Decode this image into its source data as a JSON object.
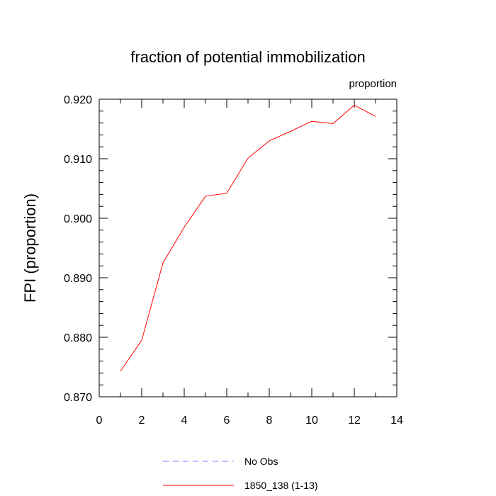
{
  "chart_data": {
    "type": "line",
    "title": "fraction of potential immobilization",
    "units_label": "proportion",
    "xlabel": "",
    "ylabel": "FPI  (proportion)",
    "xlim": [
      0,
      14
    ],
    "ylim": [
      0.87,
      0.92
    ],
    "x_ticks": [
      0,
      2,
      4,
      6,
      8,
      10,
      12,
      14
    ],
    "y_ticks": [
      0.87,
      0.88,
      0.89,
      0.9,
      0.91,
      0.92
    ],
    "y_tick_labels": [
      "0.870",
      "0.880",
      "0.890",
      "0.900",
      "0.910",
      "0.920"
    ],
    "series": [
      {
        "name": "1850_138 (1-13)",
        "color": "#ff0000",
        "style": "solid",
        "x": [
          1,
          2,
          3,
          4,
          5,
          6,
          7,
          8,
          9,
          10,
          11,
          12,
          13
        ],
        "values": [
          0.8743,
          0.8795,
          0.8925,
          0.8985,
          0.9037,
          0.9042,
          0.9101,
          0.913,
          0.9146,
          0.9163,
          0.9159,
          0.919,
          0.9171
        ]
      }
    ],
    "legend": [
      {
        "label": "No Obs",
        "color": "#8080ff",
        "style": "dashed"
      },
      {
        "label": "1850_138 (1-13)",
        "color": "#ff0000",
        "style": "solid"
      }
    ]
  }
}
